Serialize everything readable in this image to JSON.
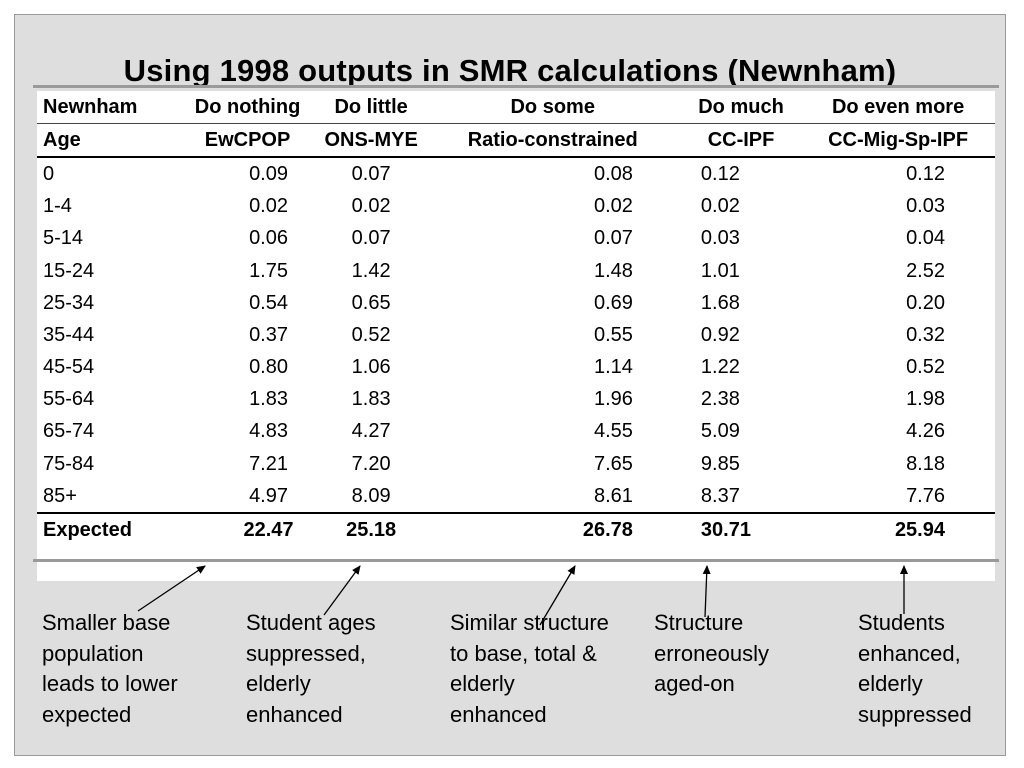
{
  "title": "Using 1998 outputs in SMR calculations (Newnham)",
  "table": {
    "header_row1": [
      "Newnham",
      "Do nothing",
      "Do little",
      "Do some",
      "Do much",
      "Do even more"
    ],
    "header_row2": [
      "Age",
      "EwCPOP",
      "ONS-MYE",
      "Ratio-constrained",
      "CC-IPF",
      "CC-Mig-Sp-IPF"
    ],
    "rows": [
      [
        "0",
        "0.09",
        "0.07",
        "0.08",
        "0.12",
        "0.12"
      ],
      [
        "1-4",
        "0.02",
        "0.02",
        "0.02",
        "0.02",
        "0.03"
      ],
      [
        "5-14",
        "0.06",
        "0.07",
        "0.07",
        "0.03",
        "0.04"
      ],
      [
        "15-24",
        "1.75",
        "1.42",
        "1.48",
        "1.01",
        "2.52"
      ],
      [
        "25-34",
        "0.54",
        "0.65",
        "0.69",
        "1.68",
        "0.20"
      ],
      [
        "35-44",
        "0.37",
        "0.52",
        "0.55",
        "0.92",
        "0.32"
      ],
      [
        "45-54",
        "0.80",
        "1.06",
        "1.14",
        "1.22",
        "0.52"
      ],
      [
        "55-64",
        "1.83",
        "1.83",
        "1.96",
        "2.38",
        "1.98"
      ],
      [
        "65-74",
        "4.83",
        "4.27",
        "4.55",
        "5.09",
        "4.26"
      ],
      [
        "75-84",
        "7.21",
        "7.20",
        "7.65",
        "9.85",
        "8.18"
      ],
      [
        "85+",
        "4.97",
        "8.09",
        "8.61",
        "8.37",
        "7.76"
      ]
    ],
    "expected_row": [
      "Expected",
      "22.47",
      "25.18",
      "26.78",
      "30.71",
      "25.94"
    ]
  },
  "notes": [
    "Smaller base\npopulation\nleads to lower\nexpected",
    "Student ages\nsuppressed,\nelderly\nenhanced",
    "Similar structure\nto base, total &\nelderly\nenhanced",
    "Structure\nerroneously\naged-on",
    "Students\nenhanced,\nelderly\nsuppressed"
  ]
}
